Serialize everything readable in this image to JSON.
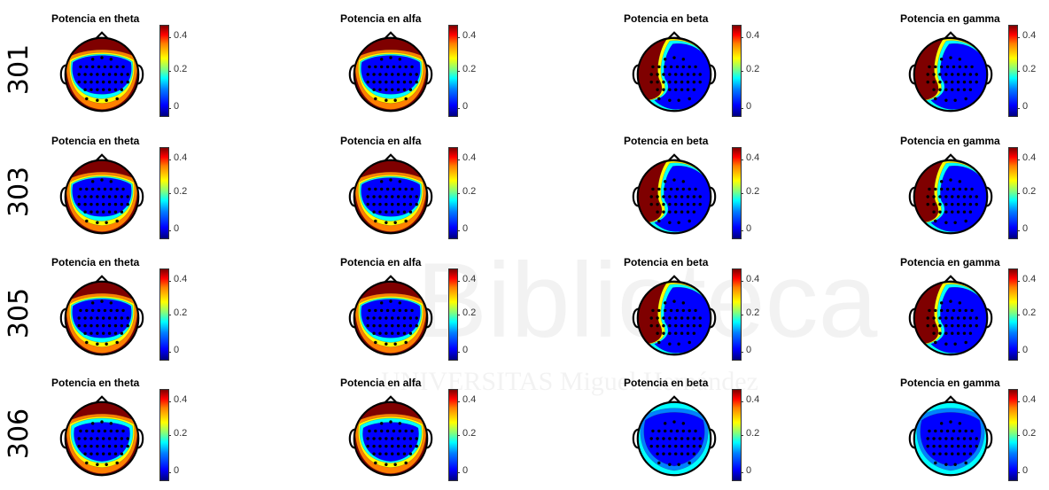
{
  "rows": [
    {
      "label": "301",
      "bands": [
        {
          "title": "Potencia en theta",
          "ticks": [
            "0.4",
            "0.2",
            "0"
          ]
        },
        {
          "title": "Potencia en alfa",
          "ticks": [
            "0.4",
            "0.2",
            "0"
          ]
        },
        {
          "title": "Potencia en beta",
          "ticks": [
            "0.4",
            "0.2",
            "0"
          ]
        },
        {
          "title": "Potencia en gamma",
          "ticks": [
            "0.4",
            "0.2",
            "0"
          ]
        }
      ]
    },
    {
      "label": "303",
      "bands": [
        {
          "title": "Potencia en theta",
          "ticks": [
            "0.4",
            "0.2",
            "0"
          ]
        },
        {
          "title": "Potencia en alfa",
          "ticks": [
            "0.4",
            "0.2",
            "0"
          ]
        },
        {
          "title": "Potencia en beta",
          "ticks": [
            "0.4",
            "0.2",
            "0"
          ]
        },
        {
          "title": "Potencia en gamma",
          "ticks": [
            "0.4",
            "0.2",
            "0"
          ]
        }
      ]
    },
    {
      "label": "305",
      "bands": [
        {
          "title": "Potencia en theta",
          "ticks": [
            "0.4",
            "0.2",
            "0"
          ]
        },
        {
          "title": "Potencia en alfa",
          "ticks": [
            "0.4",
            "0.2",
            "0"
          ]
        },
        {
          "title": "Potencia en beta",
          "ticks": [
            "0.4",
            "0.2",
            "0"
          ]
        },
        {
          "title": "Potencia en gamma",
          "ticks": [
            "0.4",
            "0.2",
            "0"
          ]
        }
      ]
    },
    {
      "label": "306",
      "bands": [
        {
          "title": "Potencia en theta",
          "ticks": [
            "0.4",
            "0.2",
            "0"
          ]
        },
        {
          "title": "Potencia en alfa",
          "ticks": [
            "0.4",
            "0.2",
            "0"
          ]
        },
        {
          "title": "Potencia en beta",
          "ticks": [
            "0.4",
            "0.2",
            "0"
          ]
        },
        {
          "title": "Potencia en gamma",
          "ticks": [
            "0.4",
            "0.2",
            "0"
          ]
        }
      ]
    }
  ],
  "watermark": {
    "line1": "Biblioteca",
    "line2": "UNIVERSITAS Miguel Hernández"
  },
  "colors": {
    "deep_red": "#7f0000",
    "red": "#ff0000",
    "orange": "#ff8000",
    "yellow": "#ffff00",
    "cyan": "#00ffff",
    "blue": "#0000ff",
    "deep_blue": "#00007f"
  }
}
